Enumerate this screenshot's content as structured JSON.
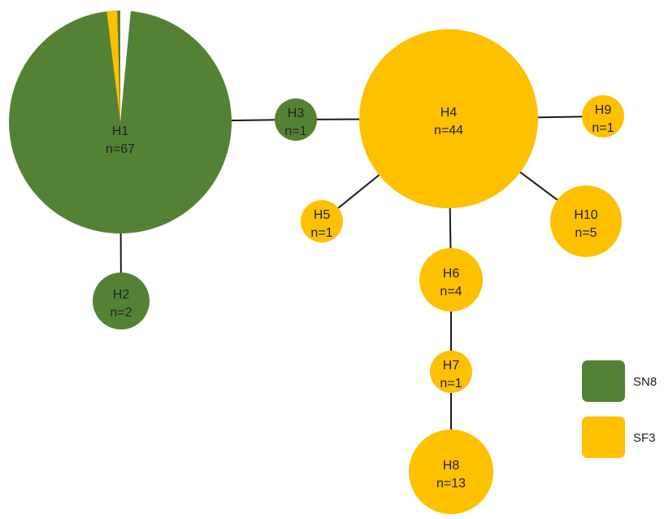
{
  "colors": {
    "green": "#548235",
    "yellow": "#FFC000"
  },
  "nodes": [
    {
      "id": "H1",
      "label": "H1",
      "count": "n=67",
      "slices": [
        {
          "group": "SN8",
          "fraction": 0.985
        },
        {
          "group": "SF3",
          "fraction": 0.015
        }
      ]
    },
    {
      "id": "H2",
      "label": "H2",
      "count": "n=2",
      "group": "SN8"
    },
    {
      "id": "H3",
      "label": "H3",
      "count": "n=1",
      "group": "SN8"
    },
    {
      "id": "H4",
      "label": "H4",
      "count": "n=44",
      "group": "SF3"
    },
    {
      "id": "H5",
      "label": "H5",
      "count": "n=1",
      "group": "SF3"
    },
    {
      "id": "H6",
      "label": "H6",
      "count": "n=4",
      "group": "SF3"
    },
    {
      "id": "H7",
      "label": "H7",
      "count": "n=1",
      "group": "SF3"
    },
    {
      "id": "H8",
      "label": "H8",
      "count": "n=13",
      "group": "SF3"
    },
    {
      "id": "H9",
      "label": "H9",
      "count": "n=1",
      "group": "SF3"
    },
    {
      "id": "H10",
      "label": "H10",
      "count": "n=5",
      "group": "SF3"
    }
  ],
  "edges": [
    [
      "H1",
      "H2"
    ],
    [
      "H1",
      "H3"
    ],
    [
      "H3",
      "H4"
    ],
    [
      "H4",
      "H5"
    ],
    [
      "H4",
      "H6"
    ],
    [
      "H6",
      "H7"
    ],
    [
      "H7",
      "H8"
    ],
    [
      "H4",
      "H9"
    ],
    [
      "H4",
      "H10"
    ]
  ],
  "legend": [
    {
      "id": "sn8",
      "label": "SN8",
      "color": "#548235"
    },
    {
      "id": "sf3",
      "label": "SF3",
      "color": "#FFC000"
    }
  ]
}
